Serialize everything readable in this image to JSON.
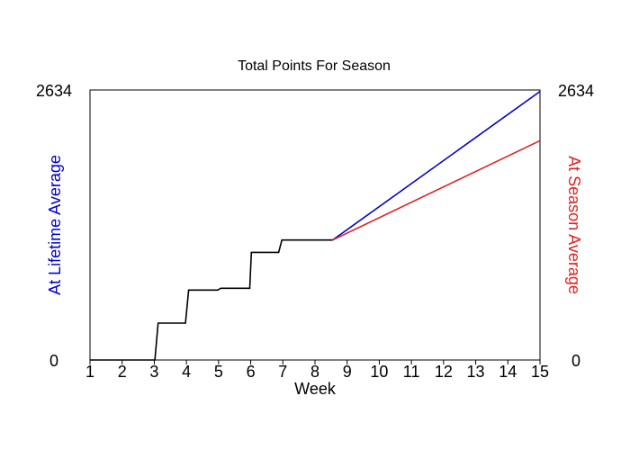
{
  "chart_data": {
    "type": "line",
    "title": "Total Points For Season",
    "xlabel": "Week",
    "ylabel_left": "At Lifetime Average",
    "ylabel_right": "At Season Average",
    "xlim": [
      1,
      15
    ],
    "ylim": [
      0,
      2634
    ],
    "x_ticks": [
      "1",
      "2",
      "3",
      "4",
      "5",
      "6",
      "7",
      "8",
      "9",
      "10",
      "11",
      "12",
      "13",
      "14",
      "15"
    ],
    "y_ticks_left": [
      "0",
      "2634"
    ],
    "y_ticks_right": [
      "0",
      "2634"
    ],
    "grid": false,
    "colors": {
      "actual": "#000000",
      "lifetime": "#0000cc",
      "season": "#dd2222",
      "ylabel_left": "#0000cc",
      "ylabel_right": "#dd2222"
    },
    "series": [
      {
        "key": "actual",
        "x": [
          1,
          3.02,
          3.12,
          3.97,
          4.07,
          4.97,
          5.07,
          5.97,
          6.02,
          6.87,
          6.97,
          8.55
        ],
        "y": [
          0,
          0,
          360,
          360,
          682,
          682,
          700,
          700,
          1050,
          1050,
          1170,
          1170
        ]
      },
      {
        "key": "lifetime",
        "x": [
          8.55,
          15
        ],
        "y": [
          1170,
          2620
        ]
      },
      {
        "key": "season",
        "x": [
          8.55,
          15
        ],
        "y": [
          1170,
          2140
        ]
      }
    ]
  }
}
